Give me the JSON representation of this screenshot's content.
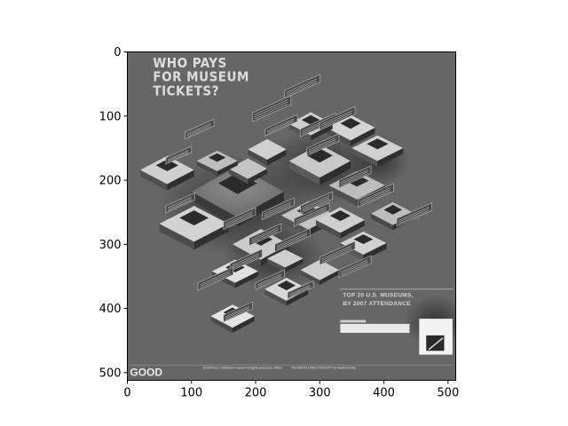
{
  "chart_data": {
    "type": "image",
    "xlim": [
      0,
      512
    ],
    "ylim": [
      512,
      0
    ],
    "xticks": [
      0,
      100,
      200,
      300,
      400,
      500
    ],
    "yticks": [
      0,
      100,
      200,
      300,
      400,
      500
    ],
    "colormap": "gray",
    "image_text": {
      "title_lines": [
        "WHO PAYS",
        "FOR MUSEUM",
        "TICKETS?"
      ],
      "legend_heading_lines": [
        "TOP 20 U.S. MUSEUMS,",
        "BY 2007 ATTENDANCE"
      ],
      "logo": "GOOD",
      "footer_sources": "SOURCES: Individual museum budgets and press offices",
      "footer_credit": "RESEARCH AND CONCEPT by Gabriel Kolbe"
    }
  }
}
